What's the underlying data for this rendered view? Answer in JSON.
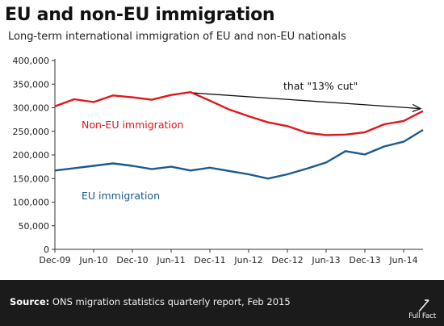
{
  "header": {
    "title": "EU and non-EU immigration",
    "subtitle": "Long-term international immigration of EU and non-EU nationals"
  },
  "footer": {
    "source_label": "Source:",
    "source_text": " ONS migration statistics quarterly report, Feb 2015",
    "logo_text": "Full Fact"
  },
  "colors": {
    "non_eu": "#e1161a",
    "eu": "#1a5a8c",
    "arrow": "#111111",
    "axis": "#333333"
  },
  "chart_data": {
    "type": "line",
    "title": "EU and non-EU immigration",
    "subtitle": "Long-term international immigration of EU and non-EU nationals",
    "xlabel": "",
    "ylabel": "",
    "x": [
      "Dec-09",
      "Mar-10",
      "Jun-10",
      "Sep-10",
      "Dec-10",
      "Mar-11",
      "Jun-11",
      "Sep-11",
      "Dec-11",
      "Mar-12",
      "Jun-12",
      "Sep-12",
      "Dec-12",
      "Mar-13",
      "Jun-13",
      "Sep-13",
      "Dec-13",
      "Mar-14",
      "Jun-14",
      "Sep-14"
    ],
    "x_tick_labels": [
      "Dec-09",
      "Jun-10",
      "Dec-10",
      "Jun-11",
      "Dec-11",
      "Jun-12",
      "Dec-12",
      "Jun-13",
      "Dec-13",
      "Jun-14"
    ],
    "ylim": [
      0,
      400000
    ],
    "y_ticks": [
      0,
      50000,
      100000,
      150000,
      200000,
      250000,
      300000,
      350000,
      400000
    ],
    "y_tick_labels": [
      "0",
      "50,000",
      "100,000",
      "150,000",
      "200,000",
      "250,000",
      "300,000",
      "350,000",
      "400,000"
    ],
    "series": [
      {
        "name": "Non-EU immigration",
        "values": [
          303000,
          318000,
          312000,
          326000,
          322000,
          317000,
          327000,
          333000,
          315000,
          296000,
          282000,
          269000,
          261000,
          247000,
          242000,
          243000,
          248000,
          265000,
          272000,
          293000
        ]
      },
      {
        "name": "EU immigration",
        "values": [
          167000,
          172000,
          177000,
          182000,
          177000,
          170000,
          175000,
          167000,
          173000,
          166000,
          159000,
          150000,
          159000,
          171000,
          184000,
          208000,
          201000,
          218000,
          228000,
          253000
        ]
      }
    ],
    "annotations": [
      {
        "text": "that \"13% cut\"",
        "from": {
          "x": "Sep-11",
          "y": 333000
        },
        "to": {
          "x": "Sep-14",
          "y": 293000
        }
      }
    ],
    "grid": "horizontal",
    "legend": "inline labels"
  }
}
